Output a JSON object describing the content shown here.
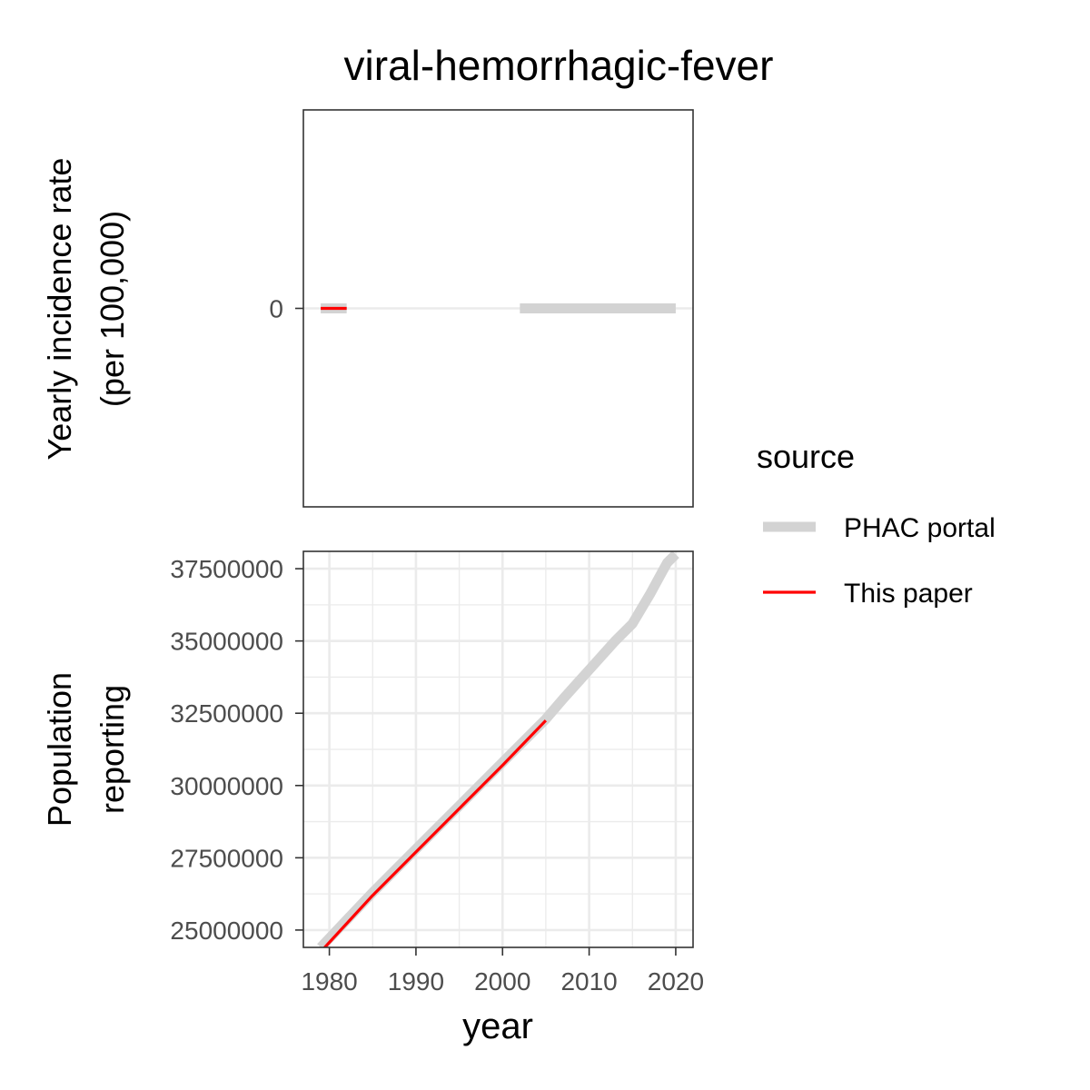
{
  "title": "viral-hemorrhagic-fever",
  "legend": {
    "title": "source",
    "placement": "right",
    "items": [
      {
        "label": "PHAC portal",
        "color": "#d3d3d3",
        "style": "thick"
      },
      {
        "label": "This paper",
        "color": "#ff0000",
        "style": "thin"
      }
    ]
  },
  "chart_data": [
    {
      "type": "line",
      "panel": "top",
      "ylabel_lines": [
        "Yearly incidence rate",
        "(per 100,000)"
      ],
      "xlim": [
        1977,
        2022
      ],
      "ylim": [
        -1,
        1
      ],
      "yticks": [
        0
      ],
      "ytick_labels": [
        "0"
      ],
      "xticks": [
        1980,
        1990,
        2000,
        2010,
        2020
      ],
      "grid": true,
      "series": [
        {
          "name": "PHAC portal",
          "color": "#d3d3d3",
          "segments": [
            {
              "x": [
                1979,
                1982
              ],
              "y": [
                0,
                0
              ]
            },
            {
              "x": [
                2002,
                2020
              ],
              "y": [
                0,
                0
              ]
            }
          ]
        },
        {
          "name": "This paper",
          "color": "#ff0000",
          "segments": [
            {
              "x": [
                1979,
                1982
              ],
              "y": [
                0,
                0
              ]
            }
          ]
        }
      ]
    },
    {
      "type": "line",
      "panel": "bottom",
      "ylabel_lines": [
        "Population",
        "reporting"
      ],
      "xlabel": "year",
      "xlim": [
        1977,
        2022
      ],
      "ylim": [
        24400000,
        38100000
      ],
      "yticks": [
        25000000,
        27500000,
        30000000,
        32500000,
        35000000,
        37500000
      ],
      "ytick_labels": [
        "25000000",
        "27500000",
        "30000000",
        "32500000",
        "35000000",
        "37500000"
      ],
      "xticks": [
        1980,
        1990,
        2000,
        2010,
        2020
      ],
      "xtick_labels": [
        "1980",
        "1990",
        "2000",
        "2010",
        "2020"
      ],
      "grid": true,
      "series": [
        {
          "name": "PHAC portal",
          "color": "#d3d3d3",
          "x": [
            1979,
            1985,
            1990,
            1995,
            2000,
            2005,
            2007,
            2010,
            2013,
            2015,
            2017,
            2019,
            2020
          ],
          "y": [
            24400000,
            26300000,
            27800000,
            29300000,
            30800000,
            32300000,
            33000000,
            34000000,
            35000000,
            35600000,
            36600000,
            37700000,
            38000000
          ]
        },
        {
          "name": "This paper",
          "color": "#ff0000",
          "x": [
            1979,
            1985,
            1990,
            1995,
            2000,
            2005
          ],
          "y": [
            24250000,
            26200000,
            27700000,
            29200000,
            30700000,
            32250000
          ]
        }
      ]
    }
  ]
}
